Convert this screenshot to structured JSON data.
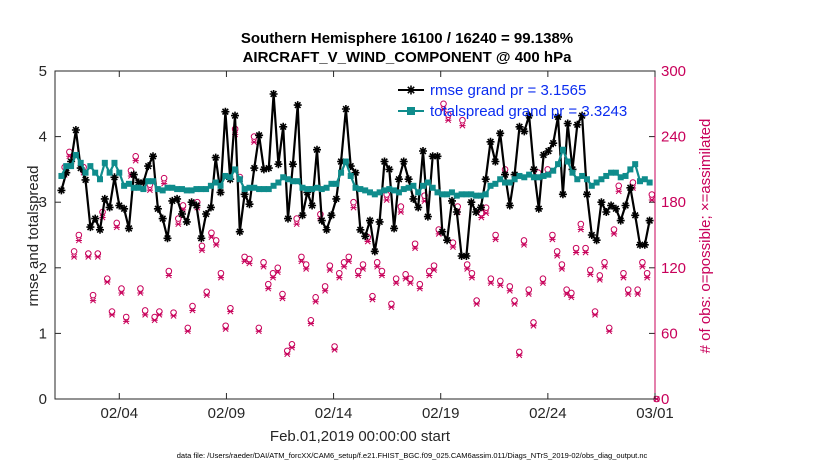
{
  "chart_data": {
    "type": "line",
    "title": "Southern Hemisphere 16100 / 16240 = 99.138%",
    "subtitle": "AIRCRAFT_V_WIND_COMPONENT @ 400 hPa",
    "xlabel": "Feb.01,2019 00:00:00 start",
    "ylabel": "rmse and totalspread",
    "ylabel_right": "# of obs: o=possible; ×=assimilated",
    "x_ticks": [
      "02/04",
      "02/09",
      "02/14",
      "02/19",
      "02/24",
      "03/01"
    ],
    "x_tick_days": [
      3,
      8,
      13,
      18,
      23,
      28
    ],
    "xlim": [
      0,
      28
    ],
    "ylim": [
      0,
      5
    ],
    "y_ticks": [
      "0",
      "1",
      "2",
      "3",
      "4",
      "5"
    ],
    "ylim_right": [
      0,
      300
    ],
    "y_ticks_right": [
      "0",
      "60",
      "120",
      "180",
      "240",
      "300"
    ],
    "legend_position": "top-right",
    "series": [
      {
        "name": "rmse grand pr = 3.1565",
        "color": "#000000",
        "marker": "star",
        "values": [
          3.18,
          3.45,
          3.62,
          4.1,
          3.52,
          3.34,
          2.62,
          2.75,
          2.58,
          3.05,
          2.92,
          3.38,
          2.95,
          2.9,
          2.6,
          3.42,
          3.3,
          3.3,
          3.55,
          3.7,
          2.9,
          2.75,
          2.45,
          3.02,
          3.05,
          2.82,
          2.7,
          3.0,
          2.95,
          2.45,
          2.82,
          2.92,
          3.68,
          3.15,
          4.38,
          3.35,
          4.32,
          2.55,
          3.12,
          2.97,
          3.52,
          4.02,
          3.5,
          3.52,
          4.65,
          3.58,
          4.15,
          2.75,
          3.58,
          4.48,
          2.8,
          3.15,
          2.95,
          3.8,
          2.72,
          2.58,
          2.8,
          3.05,
          3.62,
          4.42,
          3.55,
          3.45,
          2.58,
          2.48,
          2.72,
          2.25,
          2.7,
          3.62,
          3.5,
          2.6,
          3.35,
          3.62,
          3.35,
          3.05,
          2.92,
          3.78,
          2.78,
          3.7,
          3.7,
          2.55,
          2.42,
          3.02,
          2.85,
          2.18,
          2.18,
          3.0,
          2.85,
          2.92,
          3.35,
          3.92,
          3.62,
          4.05,
          3.42,
          2.95,
          3.42,
          4.15,
          4.08,
          4.32,
          3.5,
          2.9,
          3.72,
          3.78,
          3.9,
          4.3,
          3.12,
          4.2,
          3.5,
          4.18,
          4.32,
          3.12,
          2.5,
          2.42,
          3.0,
          2.85,
          2.95,
          2.9,
          2.72,
          2.95,
          3.22,
          2.8,
          2.35,
          2.35,
          2.72
        ],
        "x_start": 0.3,
        "x_step": 0.225
      },
      {
        "name": "totalspread grand pr = 3.3243",
        "color": "#0f8c8c",
        "marker": "square",
        "values": [
          3.4,
          3.55,
          3.55,
          3.72,
          3.6,
          3.45,
          3.55,
          3.45,
          3.35,
          3.6,
          3.45,
          3.6,
          3.45,
          3.25,
          3.28,
          3.22,
          3.22,
          3.2,
          3.32,
          3.32,
          3.2,
          3.18,
          3.22,
          3.22,
          3.2,
          3.2,
          3.18,
          3.18,
          3.2,
          3.2,
          3.2,
          3.25,
          3.3,
          3.25,
          3.4,
          3.38,
          3.5,
          3.35,
          3.2,
          3.22,
          3.22,
          3.2,
          3.2,
          3.2,
          3.25,
          3.3,
          3.38,
          3.35,
          3.32,
          3.32,
          3.22,
          3.2,
          3.2,
          3.22,
          3.2,
          3.22,
          3.28,
          3.28,
          3.45,
          3.62,
          3.4,
          3.22,
          3.2,
          3.18,
          3.15,
          3.12,
          3.15,
          3.18,
          3.2,
          3.18,
          3.15,
          3.2,
          3.22,
          3.25,
          3.15,
          3.25,
          3.3,
          3.22,
          3.15,
          3.12,
          3.12,
          3.15,
          3.1,
          3.12,
          3.12,
          3.12,
          3.1,
          3.1,
          3.12,
          3.25,
          3.28,
          3.35,
          3.3,
          3.3,
          3.35,
          3.4,
          3.38,
          3.42,
          3.38,
          3.38,
          3.4,
          3.42,
          3.48,
          3.58,
          3.8,
          3.62,
          3.45,
          3.35,
          3.4,
          3.35,
          3.25,
          3.3,
          3.35,
          3.4,
          3.45,
          3.45,
          3.38,
          3.4,
          3.5,
          3.58,
          3.32,
          3.35,
          3.3
        ],
        "x_start": 0.3,
        "x_step": 0.225
      },
      {
        "name": "possible",
        "color": "#c8005a",
        "marker": "circle",
        "axis": "right",
        "values": [
          212,
          226,
          135,
          150,
          212,
          133,
          95,
          133,
          171,
          110,
          80,
          161,
          101,
          75,
          209,
          222,
          101,
          81,
          196,
          75,
          80,
          202,
          117,
          79,
          165,
          177,
          65,
          85,
          180,
          140,
          98,
          152,
          145,
          115,
          67,
          83,
          247,
          203,
          130,
          128,
          240,
          65,
          125,
          105,
          115,
          120,
          96,
          44,
          50,
          165,
          130,
          123,
          72,
          93,
          169,
          103,
          122,
          48,
          115,
          125,
          130,
          180,
          117,
          123,
          148,
          94,
          125,
          117,
          187,
          87,
          110,
          176,
          114,
          110,
          142,
          105,
          186,
          117,
          122,
          155,
          270,
          260,
          143,
          176,
          255,
          123,
          115,
          90,
          170,
          175,
          110,
          150,
          108,
          210,
          103,
          90,
          43,
          145,
          100,
          70,
          207,
          110,
          210,
          150,
          135,
          123,
          100,
          97,
          138,
          160,
          138,
          118,
          80,
          113,
          125,
          65,
          155,
          195,
          115,
          100,
          198,
          100,
          125,
          115,
          187,
          0
        ],
        "x_start": 0.45,
        "x_step": 0.221
      },
      {
        "name": "assimilated",
        "color": "#c8005a",
        "marker": "x",
        "axis": "right",
        "values": [
          205,
          222,
          130,
          145,
          207,
          130,
          90,
          130,
          166,
          107,
          77,
          157,
          97,
          71,
          204,
          218,
          97,
          77,
          191,
          72,
          77,
          197,
          113,
          76,
          160,
          173,
          62,
          81,
          175,
          136,
          95,
          148,
          141,
          111,
          64,
          80,
          242,
          199,
          126,
          124,
          235,
          62,
          121,
          101,
          111,
          116,
          92,
          41,
          47,
          160,
          126,
          119,
          69,
          89,
          165,
          99,
          118,
          45,
          111,
          121,
          126,
          175,
          113,
          119,
          144,
          91,
          121,
          113,
          182,
          84,
          106,
          171,
          110,
          106,
          138,
          101,
          181,
          113,
          118,
          151,
          265,
          255,
          139,
          171,
          250,
          119,
          111,
          87,
          166,
          170,
          106,
          146,
          104,
          205,
          99,
          87,
          40,
          141,
          96,
          67,
          202,
          106,
          205,
          146,
          131,
          119,
          96,
          93,
          134,
          155,
          134,
          114,
          77,
          109,
          121,
          62,
          151,
          190,
          111,
          96,
          193,
          96,
          121,
          111,
          182,
          0
        ],
        "x_start": 0.45,
        "x_step": 0.221
      }
    ],
    "footer": "data file: /Users/raeder/DAI/ATM_forcXX/CAM6_setup/f.e21.FHIST_BGC.f09_025.CAM6assim.011/Diags_NTrS_2019-02/obs_diag_output.nc"
  }
}
